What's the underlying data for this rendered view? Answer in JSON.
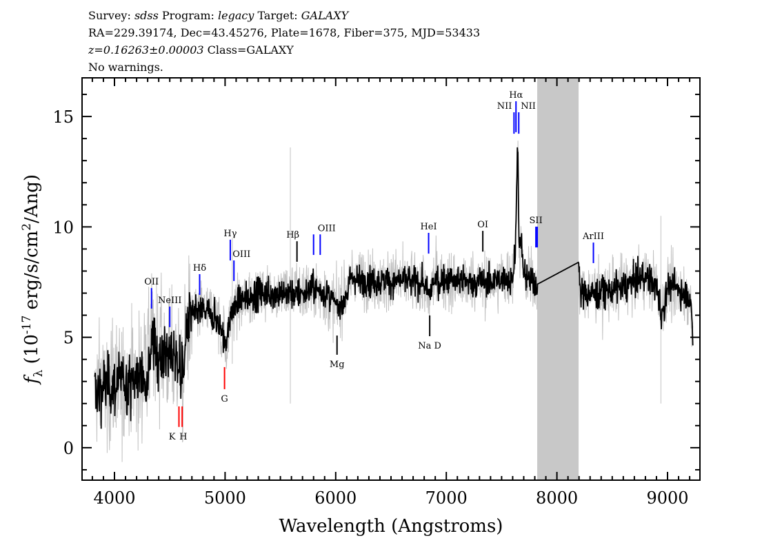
{
  "header": {
    "line1": {
      "survey_label": "Survey: ",
      "survey": "sdss",
      "program_label": " Program: ",
      "program": "legacy",
      "target_label": " Target: ",
      "target": "GALAXY"
    },
    "line2": "RA=229.39174, Dec=43.45276, Plate=1678, Fiber=375, MJD=53433",
    "line3": {
      "z": "z=0.16263±0.00003",
      "class": " Class=GALAXY"
    },
    "line4": "No warnings."
  },
  "chart_data": {
    "type": "line",
    "xlabel": "Wavelength (Angstroms)",
    "ylabel": "f_λ (10^-17 erg/s/cm^2/Ang)",
    "xlim": [
      3707,
      9293
    ],
    "ylim": [
      -1.47,
      16.75
    ],
    "xticks": [
      4000,
      5000,
      6000,
      7000,
      8000,
      9000
    ],
    "yticks": [
      0,
      5,
      10,
      15
    ],
    "grid": false,
    "colors": {
      "flux": "#000000",
      "error_band": "#c0c0c0",
      "masked": "#c8c8c8",
      "emission": "#0000ff",
      "absorption": "#ff0000",
      "other": "#000000"
    },
    "masked_region": [
      7822,
      8196
    ],
    "flux": {
      "wavelength": [
        3820,
        3900,
        4000,
        4100,
        4200,
        4300,
        4340,
        4360,
        4400,
        4500,
        4580,
        4620,
        4650,
        4700,
        4800,
        4900,
        4980,
        5010,
        5050,
        5100,
        5200,
        5300,
        5400,
        5500,
        5600,
        5700,
        5800,
        5900,
        5980,
        6020,
        6100,
        6150,
        6200,
        6400,
        6600,
        6800,
        6845,
        6870,
        6900,
        7000,
        7200,
        7400,
        7600,
        7625,
        7645,
        7660,
        7680,
        7700,
        7800,
        7822,
        8196,
        8210,
        8400,
        8600,
        8800,
        8900,
        8950,
        9000,
        9100,
        9200,
        9230
      ],
      "values": [
        2.5,
        2.8,
        2.8,
        3.0,
        3.1,
        3.4,
        5.2,
        4.4,
        4.3,
        4.2,
        4.0,
        3.0,
        5.5,
        6.0,
        6.2,
        6.0,
        5.2,
        4.6,
        6.0,
        6.5,
        6.8,
        7.0,
        7.0,
        7.0,
        7.0,
        7.0,
        7.2,
        7.0,
        6.6,
        6.3,
        7.0,
        7.8,
        7.6,
        7.5,
        7.6,
        7.4,
        6.7,
        7.4,
        7.6,
        7.6,
        7.5,
        7.5,
        7.7,
        9.0,
        14.0,
        8.8,
        9.2,
        7.8,
        7.5,
        7.4,
        8.4,
        7.0,
        7.0,
        7.3,
        7.8,
        7.3,
        6.0,
        7.3,
        7.2,
        6.8,
        5.0
      ]
    },
    "lines": [
      {
        "label": "OII",
        "wavelength": 4335,
        "top": 7.23,
        "bottom": 6.3,
        "kind": "emission"
      },
      {
        "label": "NeIII",
        "wavelength": 4500,
        "top": 6.39,
        "bottom": 5.46,
        "kind": "emission"
      },
      {
        "label": "Hδ",
        "wavelength": 4770,
        "top": 7.86,
        "bottom": 6.92,
        "kind": "emission"
      },
      {
        "label": "Hγ",
        "wavelength": 5047,
        "top": 9.42,
        "bottom": 8.48,
        "kind": "emission"
      },
      {
        "label": "OIII",
        "wavelength": 5080,
        "top": 8.48,
        "bottom": 7.55,
        "kind": "emission"
      },
      {
        "label": "Hβ",
        "wavelength": 5650,
        "top": 9.35,
        "bottom": 8.42,
        "kind": "other"
      },
      {
        "label": "OIII",
        "wavelength": 5800,
        "top": 9.66,
        "bottom": 8.73,
        "kind": "emission"
      },
      {
        "label": "",
        "wavelength": 5860,
        "top": 9.66,
        "bottom": 8.73,
        "kind": "emission"
      },
      {
        "label": "HeI",
        "wavelength": 6840,
        "top": 9.73,
        "bottom": 8.79,
        "kind": "emission"
      },
      {
        "label": "OI",
        "wavelength": 7330,
        "top": 9.82,
        "bottom": 8.88,
        "kind": "other"
      },
      {
        "label": "Hα",
        "wavelength": 7630,
        "top": 15.69,
        "bottom": 14.29,
        "kind": "emission"
      },
      {
        "label": "NII",
        "wavelength": 7612,
        "top": 15.19,
        "bottom": 14.22,
        "kind": "emission",
        "anchor": "end"
      },
      {
        "label": "NII",
        "wavelength": 7655,
        "top": 15.19,
        "bottom": 14.22,
        "kind": "emission",
        "anchor": "start"
      },
      {
        "label": "SII",
        "wavelength": 7810,
        "top": 10.01,
        "bottom": 9.07,
        "kind": "emission"
      },
      {
        "label": "",
        "wavelength": 7822,
        "top": 10.01,
        "bottom": 9.07,
        "kind": "emission"
      },
      {
        "label": "ArIII",
        "wavelength": 8330,
        "top": 9.29,
        "bottom": 8.36,
        "kind": "emission"
      },
      {
        "label": "K",
        "wavelength": 4583,
        "top": 1.87,
        "bottom": 0.94,
        "kind": "absorption",
        "below": true
      },
      {
        "label": "H",
        "wavelength": 4612,
        "top": 1.87,
        "bottom": 0.94,
        "kind": "absorption",
        "below": true
      },
      {
        "label": "G",
        "wavelength": 4995,
        "top": 3.65,
        "bottom": 2.65,
        "kind": "absorption",
        "below": true
      },
      {
        "label": "Mg",
        "wavelength": 6012,
        "top": 5.08,
        "bottom": 4.21,
        "kind": "other",
        "below": true
      },
      {
        "label": "Na D",
        "wavelength": 6850,
        "top": 5.99,
        "bottom": 5.05,
        "kind": "other",
        "below": true
      }
    ]
  }
}
